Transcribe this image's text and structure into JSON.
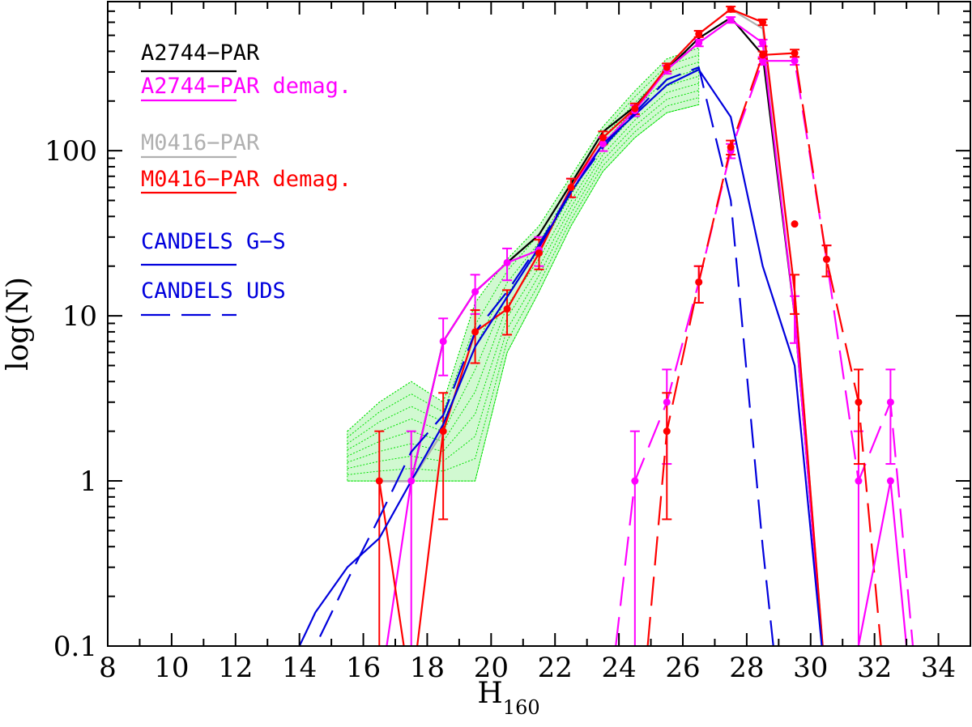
{
  "chart_data": {
    "type": "line",
    "title": "",
    "xlabel": "H",
    "xlabel_subscript": "160",
    "ylabel": "log(N)",
    "xlim": [
      8,
      35
    ],
    "ylim": [
      0.1,
      800
    ],
    "yscale": "log",
    "x_ticks": [
      8,
      10,
      12,
      14,
      16,
      18,
      20,
      22,
      24,
      26,
      28,
      30,
      32,
      34
    ],
    "x_tick_labels": [
      "8",
      "10",
      "12",
      "14",
      "16",
      "18",
      "20",
      "22",
      "24",
      "26",
      "28",
      "30",
      "32",
      "34"
    ],
    "y_ticks": [
      0.1,
      1,
      10,
      100
    ],
    "y_tick_labels": [
      "0.1",
      "1",
      "10",
      "100"
    ],
    "legend": [
      {
        "label": "A2744−PAR",
        "color": "#000000",
        "dash": "solid"
      },
      {
        "label": "A2744−PAR demag.",
        "color": "#ff00ff",
        "dash": "solid"
      },
      {
        "label": "M0416−PAR",
        "color": "#b0b0b0",
        "dash": "solid"
      },
      {
        "label": "M0416−PAR demag.",
        "color": "#ff0000",
        "dash": "solid"
      },
      {
        "label": "CANDELS G−S",
        "color": "#0000dd",
        "dash": "solid"
      },
      {
        "label": "CANDELS UDS",
        "color": "#0000dd",
        "dash": "long-dash"
      }
    ],
    "series": [
      {
        "name": "A2744-PAR",
        "color": "#000000",
        "dash": "solid",
        "errors": false,
        "x": [
          16.5,
          17.5,
          18.5,
          19.5,
          20.5,
          21.5,
          22.5,
          23.5,
          24.5,
          25.5,
          26.5,
          27.5,
          28.5,
          29.5,
          30.5
        ],
        "y": [
          1,
          1,
          7,
          14,
          21,
          31,
          63,
          130,
          185,
          310,
          480,
          640,
          380,
          10,
          0.05
        ]
      },
      {
        "name": "M0416-PAR",
        "color": "#b0b0b0",
        "dash": "solid",
        "errors": false,
        "x": [
          16.5,
          17.5,
          18.5,
          19.5,
          20.5,
          21.5,
          22.5,
          23.5,
          24.5,
          25.5,
          26.5,
          27.5,
          28.5,
          29.5,
          30.5
        ],
        "y": [
          1,
          1,
          2,
          8,
          11,
          24,
          60,
          120,
          180,
          320,
          510,
          720,
          550,
          14,
          0.05
        ]
      },
      {
        "name": "A2744-PAR demag.",
        "color": "#ff00ff",
        "dash": "solid",
        "errors": true,
        "x": [
          16.5,
          17.5,
          18.5,
          19.5,
          20.5,
          21.5,
          22.5,
          23.5,
          24.5,
          25.5,
          26.5,
          27.5,
          28.5,
          29.5,
          30.5
        ],
        "y": [
          0.05,
          1,
          7,
          14,
          21,
          25,
          60,
          110,
          175,
          310,
          450,
          620,
          450,
          10,
          0.05
        ]
      },
      {
        "name": "M0416-PAR demag.",
        "color": "#ff0000",
        "dash": "solid",
        "errors": true,
        "x": [
          16.5,
          17.5,
          18.5,
          19.5,
          20.5,
          21.5,
          22.5,
          23.5,
          24.5,
          25.5,
          26.5,
          27.5,
          28.5,
          29.5,
          30.5
        ],
        "y": [
          1,
          0.05,
          2,
          8,
          11,
          24,
          60,
          120,
          180,
          320,
          510,
          720,
          600,
          14,
          0.05
        ]
      },
      {
        "name": "CANDELS G-S",
        "color": "#0000dd",
        "dash": "solid",
        "errors": false,
        "x": [
          14.0,
          14.5,
          15.5,
          16.5,
          17.5,
          18.5,
          19.5,
          20.5,
          21.5,
          22.5,
          23.5,
          24.5,
          25.5,
          26.5,
          27.5,
          28.5,
          29.5,
          30.5
        ],
        "y": [
          0.1,
          0.16,
          0.3,
          0.45,
          1.0,
          2.2,
          6.5,
          13,
          26,
          56,
          110,
          165,
          250,
          310,
          160,
          20,
          5,
          0.05
        ]
      },
      {
        "name": "CANDELS UDS",
        "color": "#0000dd",
        "dash": "long-dash",
        "errors": false,
        "x": [
          14.0,
          14.5,
          15.5,
          16.5,
          17.5,
          18.5,
          19.5,
          20.5,
          21.5,
          22.5,
          23.5,
          24.5,
          25.5,
          26.5,
          27.5,
          28.5,
          29.0
        ],
        "y": [
          0.07,
          0.1,
          0.25,
          0.6,
          1.5,
          2.5,
          8,
          14,
          27,
          57,
          105,
          170,
          270,
          320,
          50,
          0.4,
          0.05
        ]
      },
      {
        "name": "A2744-PAR demag. (high-z)",
        "color": "#ff00ff",
        "dash": "long-dash",
        "errors": true,
        "x": [
          23.9,
          24.5,
          25.5,
          26.5,
          27.5,
          28.5,
          29.5,
          30.5,
          31.5,
          32.5,
          33.2
        ],
        "y": [
          0.1,
          1,
          3,
          16,
          100,
          350,
          350,
          22,
          1,
          3,
          0.1
        ]
      },
      {
        "name": "M0416-PAR demag. (high-z)",
        "color": "#ff0000",
        "dash": "long-dash",
        "errors": true,
        "x": [
          24.9,
          25.5,
          26.5,
          27.5,
          28.5,
          29.5,
          30.5,
          31.5,
          32.2
        ],
        "y": [
          0.1,
          2,
          16,
          105,
          380,
          390,
          22,
          3,
          0.1
        ]
      },
      {
        "name": "A2744-PAR demag. (high-z, solid)",
        "color": "#ff00ff",
        "dash": "solid",
        "errors": false,
        "x": [
          31.5,
          32.5,
          33.0
        ],
        "y": [
          0.1,
          1,
          0.1
        ]
      }
    ],
    "markers": [
      {
        "series": "A2744-PAR demag.",
        "color": "#ff00ff",
        "x": [
          17.5,
          18.5,
          19.5,
          20.5,
          21.5,
          23.5,
          24.5,
          25.5,
          26.5,
          27.5,
          28.5
        ],
        "y": [
          1,
          7,
          14,
          21,
          25,
          110,
          175,
          310,
          450,
          620,
          450
        ]
      },
      {
        "series": "M0416-PAR demag.",
        "color": "#ff0000",
        "x": [
          16.5,
          18.5,
          19.5,
          20.5,
          21.5,
          22.5,
          23.5,
          24.5,
          25.5,
          26.5,
          27.5,
          28.5
        ],
        "y": [
          1,
          2,
          8,
          11,
          24,
          60,
          120,
          180,
          320,
          510,
          720,
          600
        ]
      },
      {
        "series": "A2744-PAR demag. (high-z)",
        "color": "#ff00ff",
        "x": [
          24.5,
          25.5,
          26.5,
          27.5,
          28.5,
          29.5,
          30.5,
          31.5,
          32.5,
          32.5
        ],
        "y": [
          1,
          3,
          16,
          100,
          350,
          350,
          22,
          1,
          3,
          1
        ]
      },
      {
        "series": "M0416-PAR demag. (high-z)",
        "color": "#ff0000",
        "x": [
          25.5,
          26.5,
          27.5,
          28.5,
          29.5,
          29.5,
          30.5,
          31.5
        ],
        "y": [
          2,
          16,
          105,
          380,
          390,
          36,
          22,
          3
        ]
      }
    ],
    "green_band": {
      "color": "#00e000",
      "description": "ensemble of simulated number counts (dotted green)",
      "x": [
        15.5,
        16.5,
        17.5,
        18.5,
        19.5,
        20.5,
        21.5,
        22.5,
        23.5,
        24.5,
        25.5,
        26.5
      ],
      "y_low": [
        1,
        1,
        1,
        1,
        1,
        6,
        14,
        35,
        75,
        120,
        170,
        190
      ],
      "y_high": [
        2,
        3,
        4,
        3,
        12,
        22,
        35,
        70,
        140,
        230,
        360,
        420
      ]
    }
  }
}
